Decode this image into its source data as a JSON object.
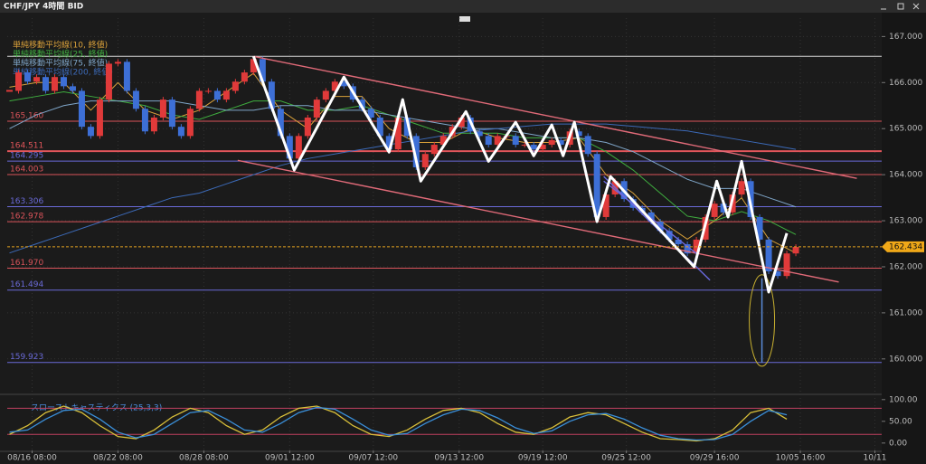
{
  "window_title": "CHF/JPY 4時間 BID",
  "chart_data": [
    {
      "type": "candlestick",
      "x": [
        1,
        5,
        9,
        13,
        17,
        21,
        25,
        29,
        33,
        37,
        41,
        45,
        49,
        53,
        57,
        61,
        65,
        69,
        73,
        77,
        81,
        85,
        89,
        93,
        97,
        101,
        105,
        109,
        113,
        117,
        121,
        125,
        129,
        133,
        137,
        141,
        145,
        149,
        153,
        157,
        161,
        165,
        169,
        173,
        177,
        181,
        185,
        189,
        193,
        197,
        201,
        205,
        209,
        213,
        217,
        221,
        225,
        229,
        233,
        237,
        241,
        245,
        249,
        253,
        257,
        261,
        265,
        269,
        273,
        277,
        281,
        285,
        289,
        293,
        297,
        301,
        305,
        309,
        313,
        317,
        321,
        325,
        329,
        333,
        337,
        341,
        345,
        349
      ],
      "close": [
        165.82,
        166.22,
        166.02,
        166.12,
        165.82,
        166.12,
        165.92,
        165.82,
        165.04,
        164.84,
        165.63,
        166.41,
        166.45,
        165.82,
        165.43,
        164.94,
        165.24,
        165.63,
        165.04,
        164.84,
        165.43,
        165.82,
        165.82,
        165.63,
        165.82,
        166.02,
        166.22,
        166.51,
        166.02,
        165.43,
        164.84,
        164.35,
        164.84,
        165.24,
        165.63,
        165.82,
        166.02,
        165.92,
        165.63,
        165.43,
        165.24,
        164.84,
        164.55,
        165.24,
        164.84,
        164.16,
        164.45,
        164.65,
        164.84,
        165.04,
        165.24,
        164.94,
        164.84,
        164.65,
        164.84,
        164.84,
        164.65,
        164.65,
        164.55,
        164.65,
        164.75,
        164.65,
        164.94,
        164.84,
        164.45,
        163.08,
        163.57,
        163.86,
        163.47,
        163.28,
        163.18,
        162.98,
        162.78,
        162.59,
        162.49,
        162.29,
        162.59,
        163.08,
        163.37,
        163.18,
        163.57,
        163.86,
        163.08,
        162.59,
        161.9,
        161.8,
        162.29,
        162.43
      ],
      "up_color": "#e03a3a",
      "down_color": "#3d6fd6",
      "wick": {
        "x": 334,
        "high": 161.75,
        "low": 159.92,
        "color": "#5a8ad8"
      },
      "ma": [
        {
          "name": "単純移動平均線(10, 終値)",
          "color": "#d9a13a",
          "x": [
            1,
            13,
            25,
            37,
            49,
            61,
            73,
            85,
            97,
            109,
            121,
            133,
            145,
            157,
            169,
            181,
            193,
            205,
            217,
            229,
            241,
            253,
            265,
            277,
            289,
            301,
            313,
            325,
            337,
            349
          ],
          "values": [
            165.9,
            166.0,
            166.0,
            165.4,
            166.0,
            165.4,
            165.2,
            165.4,
            165.8,
            166.2,
            165.4,
            165.0,
            165.7,
            165.7,
            165.0,
            164.7,
            164.7,
            165.0,
            164.8,
            164.7,
            164.7,
            164.8,
            164.0,
            163.6,
            163.0,
            162.6,
            163.0,
            163.5,
            162.6,
            162.3
          ]
        },
        {
          "name": "単純移動平均線(25, 終値)",
          "color": "#3fae3f",
          "x": [
            1,
            13,
            25,
            37,
            49,
            61,
            73,
            85,
            97,
            109,
            121,
            133,
            145,
            157,
            169,
            181,
            193,
            205,
            217,
            229,
            241,
            253,
            265,
            277,
            289,
            301,
            313,
            325,
            337,
            349
          ],
          "values": [
            165.6,
            165.7,
            165.8,
            165.7,
            165.6,
            165.5,
            165.3,
            165.2,
            165.4,
            165.6,
            165.6,
            165.4,
            165.4,
            165.5,
            165.3,
            165.1,
            164.9,
            164.9,
            164.9,
            164.8,
            164.8,
            164.8,
            164.5,
            164.1,
            163.6,
            163.1,
            163.0,
            163.2,
            163.0,
            162.7
          ]
        },
        {
          "name": "単純移動平均線(75, 終値)",
          "color": "#7fa6c9",
          "x": [
            1,
            13,
            25,
            37,
            49,
            61,
            73,
            85,
            97,
            109,
            121,
            133,
            145,
            157,
            169,
            181,
            193,
            205,
            217,
            229,
            241,
            253,
            265,
            277,
            289,
            301,
            313,
            325,
            337,
            349
          ],
          "values": [
            165.0,
            165.3,
            165.5,
            165.6,
            165.6,
            165.6,
            165.6,
            165.5,
            165.4,
            165.4,
            165.5,
            165.5,
            165.4,
            165.4,
            165.3,
            165.2,
            165.1,
            165.0,
            165.0,
            164.9,
            164.8,
            164.8,
            164.7,
            164.5,
            164.2,
            163.9,
            163.7,
            163.7,
            163.5,
            163.3
          ]
        },
        {
          "name": "単純移動平均線(200, 終値)",
          "color": "#3c6ab8",
          "x": [
            1,
            13,
            25,
            37,
            49,
            61,
            73,
            85,
            97,
            109,
            121,
            133,
            145,
            157,
            169,
            181,
            193,
            205,
            217,
            229,
            241,
            253,
            265,
            277,
            289,
            301,
            313,
            325,
            337,
            349
          ],
          "values": [
            162.3,
            162.5,
            162.7,
            162.9,
            163.1,
            163.3,
            163.5,
            163.6,
            163.8,
            164.0,
            164.2,
            164.35,
            164.45,
            164.55,
            164.65,
            164.75,
            164.85,
            164.95,
            165.0,
            165.05,
            165.1,
            165.1,
            165.1,
            165.05,
            165.0,
            164.95,
            164.85,
            164.75,
            164.65,
            164.55
          ]
        }
      ],
      "zigzag": {
        "color": "#ffffff",
        "x": [
          109,
          127,
          149,
          169,
          175,
          183,
          203,
          213,
          225,
          233,
          241,
          246,
          251,
          261,
          267,
          304,
          314,
          319,
          325,
          337,
          345
        ],
        "values": [
          166.57,
          164.1,
          166.12,
          164.49,
          165.63,
          163.86,
          165.37,
          164.29,
          165.14,
          164.41,
          165.08,
          164.41,
          165.14,
          162.98,
          163.96,
          162.0,
          163.86,
          163.08,
          164.29,
          161.45,
          162.73
        ]
      },
      "trendlines": [
        {
          "color": "#e06a78",
          "x": [
            109,
            376
          ],
          "values": [
            166.57,
            163.92
          ]
        },
        {
          "color": "#e06a78",
          "x": [
            102,
            368
          ],
          "values": [
            164.31,
            161.67
          ]
        },
        {
          "color": "#6a6ae0",
          "x": [
            264,
            311
          ],
          "values": [
            163.96,
            161.71
          ]
        },
        {
          "color": "#6a6ae0",
          "x": [
            264,
            305
          ],
          "values": [
            163.86,
            162.29
          ]
        }
      ],
      "levels": [
        {
          "value": 166.57,
          "label": null,
          "color": "#d8d8d8"
        },
        {
          "value": 165.16,
          "label": "165.160",
          "color": "#d9535a"
        },
        {
          "value": 164.511,
          "label": "164.511",
          "color": "#e0555a"
        },
        {
          "value": 164.295,
          "label": "164.295",
          "color": "#6a6ad8"
        },
        {
          "value": 164.003,
          "label": "164.003",
          "color": "#d9535a"
        },
        {
          "value": 163.306,
          "label": "163.306",
          "color": "#6a6ad8"
        },
        {
          "value": 162.978,
          "label": "162.978",
          "color": "#d9535a"
        },
        {
          "value": 161.97,
          "label": "161.970",
          "color": "#d9535a"
        },
        {
          "value": 161.494,
          "label": "161.494",
          "color": "#6a6ad8"
        },
        {
          "value": 159.923,
          "label": "159.923",
          "color": "#6a6ad8"
        }
      ],
      "current_price": 162.434,
      "xlim": [
        0,
        387
      ],
      "xticks": [
        {
          "value": 11,
          "label": "08/16 08:00"
        },
        {
          "value": 49,
          "label": "08/22 08:00"
        },
        {
          "value": 87,
          "label": "08/28 08:00"
        },
        {
          "value": 125,
          "label": "09/01 12:00"
        },
        {
          "value": 162,
          "label": "09/07 12:00"
        },
        {
          "value": 200,
          "label": "09/13 12:00"
        },
        {
          "value": 237,
          "label": "09/19 12:00"
        },
        {
          "value": 274,
          "label": "09/25 12:00"
        },
        {
          "value": 313,
          "label": "09/29 16:00"
        },
        {
          "value": 351,
          "label": "10/05 16:00"
        },
        {
          "value": 384,
          "label": "10/11"
        }
      ],
      "ylim": [
        159.25,
        167.4
      ],
      "yticks": [
        {
          "value": 160,
          "label": "160.000"
        },
        {
          "value": 161,
          "label": "161.000"
        },
        {
          "value": 162,
          "label": "162.000"
        },
        {
          "value": 163,
          "label": "163.000"
        },
        {
          "value": 164,
          "label": "164.000"
        },
        {
          "value": 165,
          "label": "165.000"
        },
        {
          "value": 166,
          "label": "166.000"
        },
        {
          "value": 167,
          "label": "167.000"
        }
      ],
      "grid": true
    },
    {
      "type": "line",
      "title": "スローストキャスティクス (25,3,3)",
      "x": [
        1,
        9,
        17,
        25,
        33,
        41,
        49,
        57,
        65,
        73,
        81,
        89,
        97,
        105,
        113,
        121,
        129,
        137,
        145,
        153,
        161,
        169,
        177,
        185,
        193,
        201,
        209,
        217,
        225,
        233,
        241,
        249,
        257,
        265,
        273,
        281,
        289,
        297,
        305,
        313,
        321,
        329,
        337,
        345
      ],
      "series": [
        {
          "color": "#d9c03a",
          "values": [
            20,
            40,
            70,
            85,
            70,
            40,
            15,
            10,
            30,
            60,
            80,
            70,
            40,
            20,
            30,
            60,
            80,
            85,
            70,
            40,
            20,
            15,
            30,
            55,
            75,
            80,
            70,
            45,
            25,
            20,
            35,
            60,
            70,
            65,
            45,
            25,
            10,
            8,
            5,
            10,
            30,
            70,
            80,
            55
          ]
        },
        {
          "color": "#3a8fd9",
          "values": [
            25,
            30,
            55,
            75,
            78,
            55,
            25,
            12,
            20,
            45,
            70,
            75,
            55,
            30,
            25,
            45,
            70,
            82,
            78,
            55,
            30,
            18,
            22,
            45,
            65,
            78,
            75,
            58,
            35,
            22,
            28,
            50,
            65,
            68,
            55,
            35,
            18,
            10,
            7,
            8,
            20,
            50,
            75,
            65
          ]
        }
      ],
      "levels": [
        80,
        20
      ],
      "level_color": "#c04060",
      "ylim": [
        -17,
        110
      ],
      "yticks": [
        {
          "value": 0,
          "label": "0.00"
        },
        {
          "value": 50,
          "label": "50.00"
        },
        {
          "value": 100,
          "label": "100.00"
        }
      ]
    }
  ]
}
